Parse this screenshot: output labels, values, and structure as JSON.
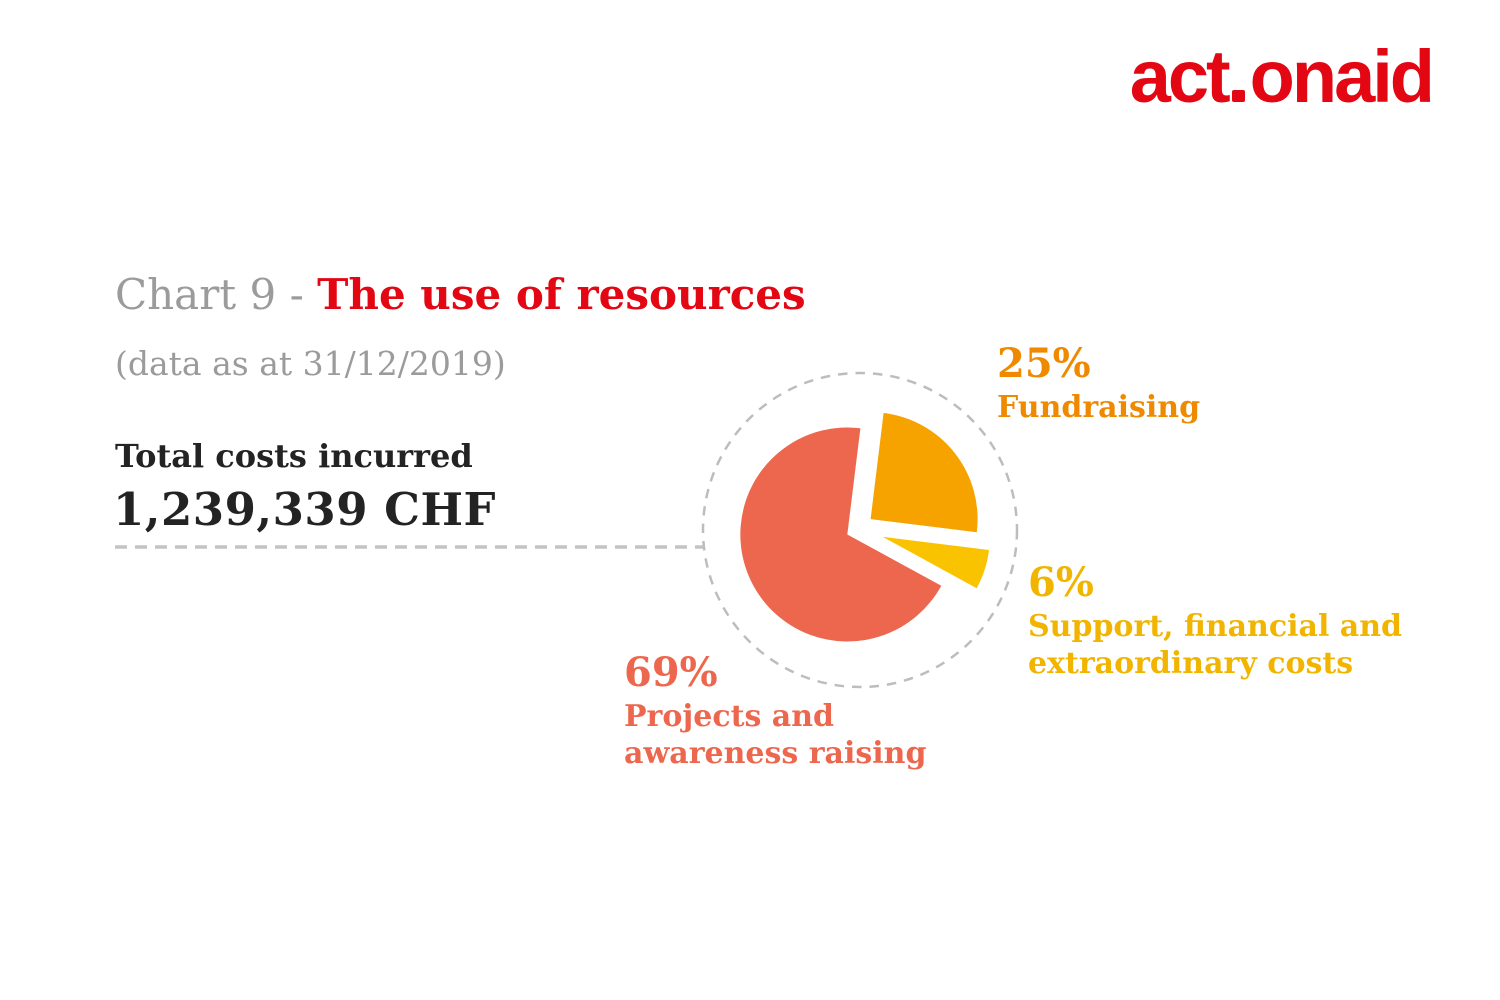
{
  "logo": {
    "prefix": "act",
    "suffix": "onaid",
    "color": "#e30613"
  },
  "title": {
    "prefix": "Chart 9 - ",
    "emphasis": "The use of resources",
    "prefix_color": "#9b9b9b",
    "emphasis_color": "#e30613"
  },
  "subtitle": "(data as at 31/12/2019)",
  "total": {
    "label": "Total costs incurred",
    "value": "1,239,339 CHF"
  },
  "chart_data": {
    "type": "pie",
    "title": "Chart 9 - The use of resources",
    "subtitle": "(data as at 31/12/2019)",
    "total_label": "Total costs incurred",
    "total_value_chf": 1239339,
    "total_value_text": "1,239,339 CHF",
    "units": "percent of total costs",
    "start_angle_deg": 7,
    "legend_position": "labels-around-pie",
    "grid": false,
    "slices": [
      {
        "id": "fundraising",
        "label": "Fundraising",
        "value_pct": 25,
        "color": "#f6a300",
        "label_color": "#ef8a00"
      },
      {
        "id": "support-financial-extraordinary",
        "label": "Support, financial and extraordinary costs",
        "value_pct": 6,
        "color": "#fac300",
        "label_color": "#f1b500"
      },
      {
        "id": "projects-awareness",
        "label": "Projects and awareness raising",
        "value_pct": 69,
        "color": "#ed674e",
        "label_color": "#ed674e"
      }
    ],
    "decoration": {
      "dashed_circle_color": "#bdbdbd",
      "leader_line_color": "#c3c3c3"
    }
  }
}
